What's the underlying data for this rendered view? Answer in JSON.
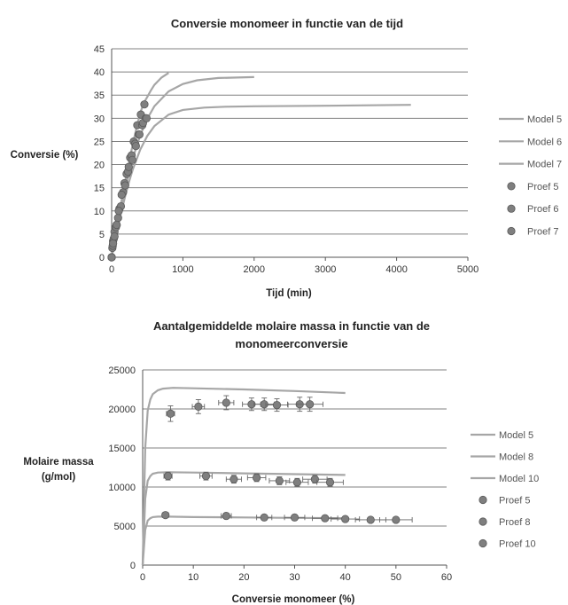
{
  "chart_data": [
    {
      "type": "scatter",
      "title": "Conversie monomeer in functie van de tijd",
      "xlabel": "Tijd (min)",
      "ylabel": "Conversie (%)",
      "xlim": [
        0,
        5000
      ],
      "ylim": [
        0,
        45
      ],
      "x_ticks": [
        "0",
        "1000",
        "2000",
        "3000",
        "4000",
        "5000"
      ],
      "y_ticks": [
        "0",
        "5",
        "10",
        "15",
        "20",
        "25",
        "30",
        "35",
        "40",
        "45"
      ],
      "grid": "horizontal",
      "legend_position": "right",
      "colors": {
        "line": "#a6a6a6",
        "marker": "#7f7f7f",
        "marker_edge": "#5a5a5a",
        "grid": "#808080"
      },
      "lines": [
        {
          "name": "Model 5",
          "x": [
            0,
            50,
            100,
            150,
            200,
            250,
            300,
            350,
            400,
            450,
            500,
            550,
            600,
            700,
            800
          ],
          "y": [
            0,
            4.6,
            9.0,
            13.2,
            17.2,
            21.0,
            24.6,
            28.0,
            31.1,
            33.3,
            34.6,
            36.0,
            37.2,
            38.8,
            39.8
          ]
        },
        {
          "name": "Model 6",
          "x": [
            0,
            50,
            100,
            150,
            200,
            250,
            300,
            400,
            500,
            600,
            800,
            1000,
            1200,
            1500,
            2000
          ],
          "y": [
            0,
            4.2,
            8.2,
            12.0,
            15.5,
            18.7,
            21.5,
            26.3,
            29.9,
            32.6,
            35.8,
            37.4,
            38.2,
            38.7,
            38.9
          ]
        },
        {
          "name": "Model 7",
          "x": [
            0,
            50,
            100,
            150,
            200,
            250,
            300,
            400,
            500,
            600,
            800,
            1000,
            1300,
            1600,
            2000,
            3000,
            4200
          ],
          "y": [
            0,
            3.8,
            7.4,
            10.7,
            13.8,
            16.6,
            19.1,
            23.2,
            26.2,
            28.3,
            30.8,
            31.8,
            32.3,
            32.5,
            32.6,
            32.7,
            32.9
          ]
        }
      ],
      "points": [
        {
          "name": "Proef 5",
          "x": [
            0,
            10,
            20,
            40,
            70,
            110,
            160,
            210,
            260,
            310,
            360,
            410,
            460
          ],
          "y": [
            0,
            2.0,
            3.5,
            5.5,
            7.0,
            10.5,
            14.0,
            18.0,
            21.5,
            25.0,
            28.5,
            30.8,
            33.0
          ]
        },
        {
          "name": "Proef 6",
          "x": [
            0,
            15,
            30,
            60,
            90,
            130,
            180,
            230,
            280,
            330,
            380,
            430,
            480
          ],
          "y": [
            0,
            2.5,
            4.0,
            6.5,
            8.5,
            11.0,
            16.0,
            18.5,
            22.0,
            24.5,
            26.5,
            28.5,
            30.0
          ]
        },
        {
          "name": "Proef 7",
          "x": [
            0,
            20,
            40,
            70,
            100,
            140,
            190,
            240,
            290,
            340,
            390,
            440,
            490
          ],
          "y": [
            0,
            3.0,
            4.5,
            7.0,
            10.0,
            13.5,
            15.5,
            19.5,
            21.0,
            24.0,
            26.5,
            29.0,
            30.0
          ]
        }
      ]
    },
    {
      "type": "scatter",
      "title": "Aantalgemiddelde molaire massa in functie van de monomeerconversie",
      "title_lines": [
        "Aantalgemiddelde molaire massa in functie van de",
        "monomeerconversie"
      ],
      "xlabel": "Conversie monomeer (%)",
      "ylabel_lines": [
        "Molaire massa",
        "(g/mol)"
      ],
      "xlim": [
        0,
        60
      ],
      "ylim": [
        0,
        25000
      ],
      "x_ticks": [
        "0",
        "10",
        "20",
        "30",
        "40",
        "50",
        "60"
      ],
      "y_ticks": [
        "0",
        "5000",
        "10000",
        "15000",
        "20000",
        "25000"
      ],
      "grid": "horizontal",
      "legend_position": "right",
      "lines": [
        {
          "name": "Model 5",
          "x": [
            0,
            0.5,
            1,
            1.5,
            2,
            3,
            4,
            6,
            10,
            20,
            30,
            40
          ],
          "y": [
            0,
            15000,
            19800,
            21200,
            21900,
            22400,
            22600,
            22700,
            22650,
            22500,
            22300,
            22050
          ]
        },
        {
          "name": "Model 8",
          "x": [
            0,
            0.5,
            1,
            1.5,
            2,
            3,
            5,
            10,
            20,
            30,
            40
          ],
          "y": [
            0,
            8500,
            10800,
            11400,
            11700,
            11850,
            11900,
            11850,
            11750,
            11650,
            11550
          ]
        },
        {
          "name": "Model 10",
          "x": [
            0,
            0.5,
            1,
            1.5,
            2,
            3,
            5,
            10,
            20,
            30,
            40
          ],
          "y": [
            0,
            4500,
            5700,
            6000,
            6150,
            6200,
            6200,
            6150,
            6100,
            6050,
            6000
          ]
        }
      ],
      "points": [
        {
          "name": "Proef 5",
          "x": [
            5.5,
            11,
            16.5,
            21.5,
            24,
            26.5,
            31,
            33
          ],
          "y": [
            19400,
            20300,
            20800,
            20600,
            20600,
            20500,
            20600,
            20600
          ],
          "x_err": [
            0.8,
            1.2,
            1.5,
            1.8,
            2.0,
            2.2,
            2.4,
            2.6
          ],
          "y_err": [
            1000,
            900,
            900,
            800,
            800,
            800,
            900,
            900
          ]
        },
        {
          "name": "Proef 8",
          "x": [
            5,
            12.5,
            18,
            22.5,
            27,
            30.5,
            34,
            37
          ],
          "y": [
            11400,
            11400,
            11000,
            11200,
            10800,
            10600,
            11000,
            10600
          ],
          "x_err": [
            0.8,
            1.2,
            1.5,
            1.8,
            2.0,
            2.2,
            2.4,
            2.6
          ],
          "y_err": [
            500,
            500,
            500,
            500,
            500,
            500,
            500,
            500
          ]
        },
        {
          "name": "Proef 10",
          "x": [
            4.5,
            16.5,
            24,
            30,
            36,
            40,
            45,
            50
          ],
          "y": [
            6400,
            6300,
            6100,
            6100,
            6000,
            5900,
            5800,
            5800
          ],
          "x_err": [
            0.6,
            1.0,
            1.5,
            2.0,
            2.5,
            2.8,
            3.0,
            3.2
          ],
          "y_err": [
            250,
            250,
            250,
            250,
            250,
            250,
            250,
            250
          ]
        }
      ]
    }
  ]
}
